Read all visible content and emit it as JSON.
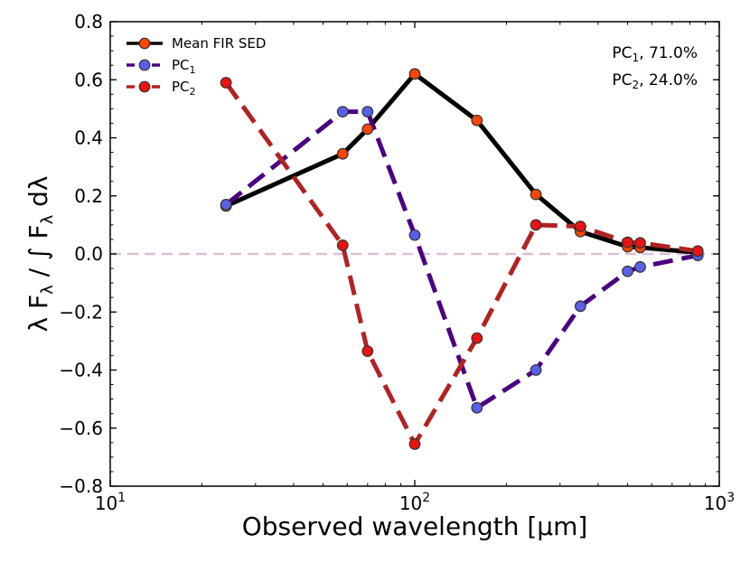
{
  "chart_data": {
    "type": "line",
    "xscale": "log",
    "xlabel": "Observed wavelength [μm]",
    "ylabel": "λ F_λ / ∫ F_λ dλ",
    "xlim": [
      10,
      1000
    ],
    "ylim": [
      -0.8,
      0.8
    ],
    "yticks": [
      -0.8,
      -0.6,
      -0.4,
      -0.2,
      0.0,
      0.2,
      0.4,
      0.6,
      0.8
    ],
    "ytick_labels": [
      "−0.8",
      "−0.6",
      "−0.4",
      "−0.2",
      "0.0",
      "0.2",
      "0.4",
      "0.6",
      "0.8"
    ],
    "xticks": [
      {
        "value": 10,
        "base": "10",
        "exp": "1"
      },
      {
        "value": 100,
        "base": "10",
        "exp": "2"
      },
      {
        "value": 1000,
        "base": "10",
        "exp": "3"
      }
    ],
    "zero_line": {
      "y": 0.0,
      "color": "#d8bfd8"
    },
    "series": [
      {
        "name": "Mean FIR SED",
        "legend_label": "Mean FIR SED",
        "line_color": "#000000",
        "marker_color": "#ff4500",
        "dashed": false,
        "x": [
          24,
          58,
          70,
          100,
          160,
          250,
          350,
          500,
          550,
          850
        ],
        "y": [
          0.165,
          0.345,
          0.43,
          0.62,
          0.46,
          0.205,
          0.077,
          0.025,
          0.022,
          0.005
        ]
      },
      {
        "name": "PC1",
        "legend_label": "PC",
        "legend_sub": "1",
        "line_color": "#4b0082",
        "marker_color": "#5a5fe8",
        "dashed": true,
        "x": [
          24,
          58,
          70,
          100,
          160,
          250,
          350,
          500,
          550,
          850
        ],
        "y": [
          0.17,
          0.49,
          0.49,
          0.065,
          -0.53,
          -0.4,
          -0.18,
          -0.06,
          -0.045,
          -0.005
        ]
      },
      {
        "name": "PC2",
        "legend_label": "PC",
        "legend_sub": "2",
        "line_color": "#b22222",
        "marker_color": "#ee1111",
        "dashed": true,
        "x": [
          24,
          58,
          70,
          100,
          160,
          250,
          350,
          500,
          550,
          850
        ],
        "y": [
          0.59,
          0.03,
          -0.335,
          -0.655,
          -0.29,
          0.1,
          0.095,
          0.04,
          0.038,
          0.01
        ]
      }
    ],
    "annotations": [
      {
        "label": "PC",
        "sub": "1",
        "text": ", 71.0%"
      },
      {
        "label": "PC",
        "sub": "2",
        "text": ", 24.0%"
      }
    ],
    "legend_position": "top-left"
  }
}
